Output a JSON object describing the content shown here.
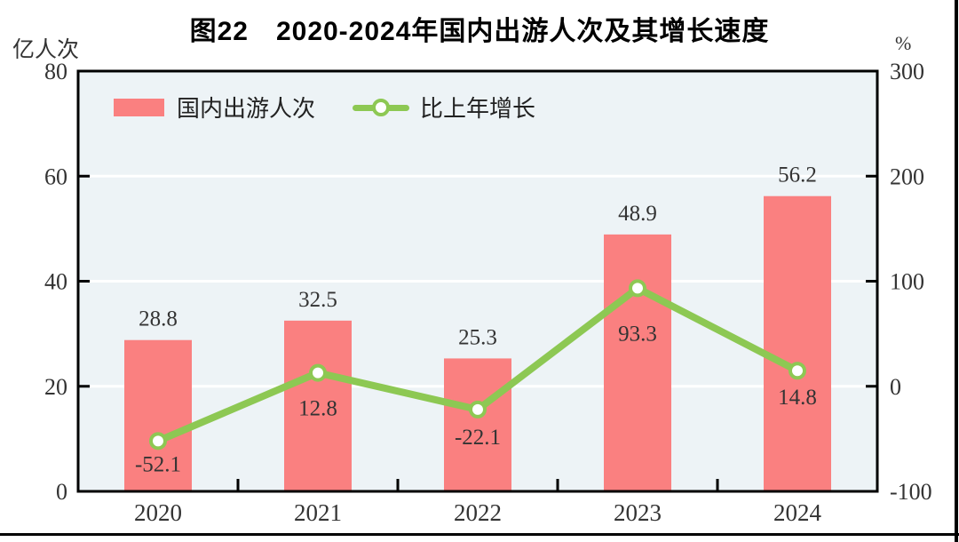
{
  "title": "图22　2020-2024年国内出游人次及其增长速度",
  "left_axis": {
    "unit": "亿人次",
    "ticks": [
      0,
      20,
      40,
      60,
      80
    ],
    "range": [
      0,
      80
    ]
  },
  "right_axis": {
    "unit": "%",
    "ticks": [
      -100,
      0,
      100,
      200,
      300
    ],
    "range": [
      -100,
      300
    ]
  },
  "legend": [
    {
      "label": "国内出游人次",
      "type": "bar",
      "color": "#FA8080"
    },
    {
      "label": "比上年增长",
      "type": "line",
      "color": "#8DC853"
    }
  ],
  "colors": {
    "bar": "#FA8080",
    "line": "#8DC853",
    "marker_fill": "#FFFFFF",
    "plot_background": "#EDF3F6",
    "gridline": "#FFFFFF",
    "frame": "#000000",
    "text": "#333333"
  },
  "chart_data": {
    "type": "bar",
    "subtype": "bar+line dual axis",
    "title": "图22　2020-2024年国内出游人次及其增长速度",
    "categories": [
      "2020",
      "2021",
      "2022",
      "2023",
      "2024"
    ],
    "series": [
      {
        "name": "国内出游人次",
        "type": "bar",
        "axis": "left",
        "unit": "亿人次",
        "color": "#FA8080",
        "values": [
          28.8,
          32.5,
          25.3,
          48.9,
          56.2
        ]
      },
      {
        "name": "比上年增长",
        "type": "line",
        "axis": "right",
        "unit": "%",
        "color": "#8DC853",
        "values": [
          -52.1,
          12.8,
          -22.1,
          93.3,
          14.8
        ]
      }
    ],
    "xlabel": "",
    "ylabel_left": "亿人次",
    "ylabel_right": "%",
    "left_ylim": [
      0,
      80
    ],
    "right_ylim": [
      -100,
      300
    ],
    "left_tick_step": 20,
    "right_tick_step": 100,
    "grid": true,
    "legend_position": "top-left-inside",
    "data_labels": true
  }
}
